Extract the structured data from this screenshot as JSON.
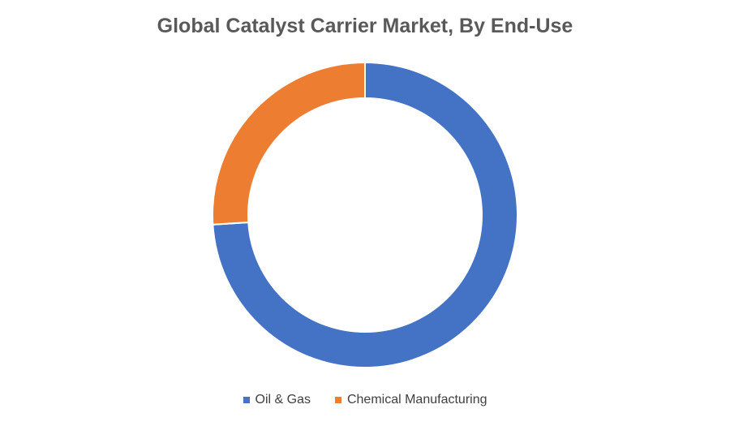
{
  "chart_data": {
    "type": "pie",
    "variant": "donut",
    "title": "Global Catalyst Carrier Market, By End-Use",
    "legend_position": "bottom",
    "slices": [
      {
        "name": "Oil & Gas",
        "value": 74.0,
        "color": "#4472C4"
      },
      {
        "name": "Chemical Manufacturing",
        "value": 26.0,
        "color": "#ED7D31"
      }
    ]
  }
}
